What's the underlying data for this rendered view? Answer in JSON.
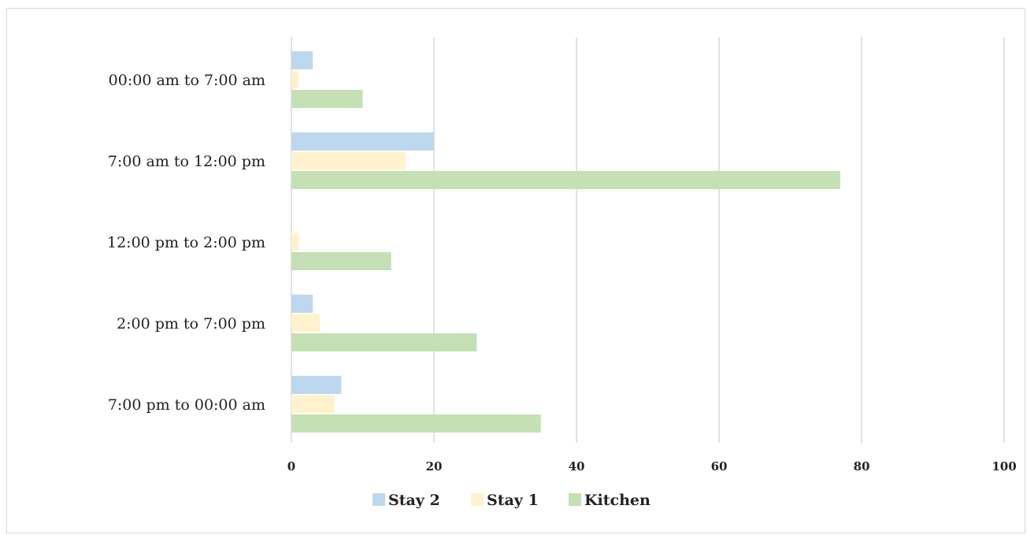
{
  "chart_data": {
    "type": "bar",
    "orientation": "horizontal",
    "title": "",
    "xlabel": "",
    "ylabel": "",
    "categories": [
      "00:00 am to 7:00 am",
      "7:00 am to 12:00 pm",
      "12:00 pm to 2:00 pm",
      "2:00 pm to 7:00 pm",
      "7:00 pm to 00:00 am"
    ],
    "series": [
      {
        "name": "Stay 2",
        "color": "#bdd7ee",
        "values": [
          3,
          20,
          0,
          3,
          7
        ]
      },
      {
        "name": "Stay 1",
        "color": "#fff2cc",
        "values": [
          1,
          16,
          1,
          4,
          6
        ]
      },
      {
        "name": "Kitchen",
        "color": "#c5e0b4",
        "values": [
          10,
          77,
          14,
          26,
          35
        ]
      }
    ],
    "xlim": [
      0,
      100
    ],
    "xticks": [
      0,
      20,
      40,
      60,
      80,
      100
    ],
    "xtick_labels": [
      "0",
      "20",
      "40",
      "60",
      "80",
      "100"
    ],
    "grid": "vertical",
    "gridline_color": "#d9d9d9",
    "legend": {
      "position": "bottom",
      "entries": [
        "Stay 2",
        "Stay 1",
        "Kitchen"
      ]
    }
  }
}
